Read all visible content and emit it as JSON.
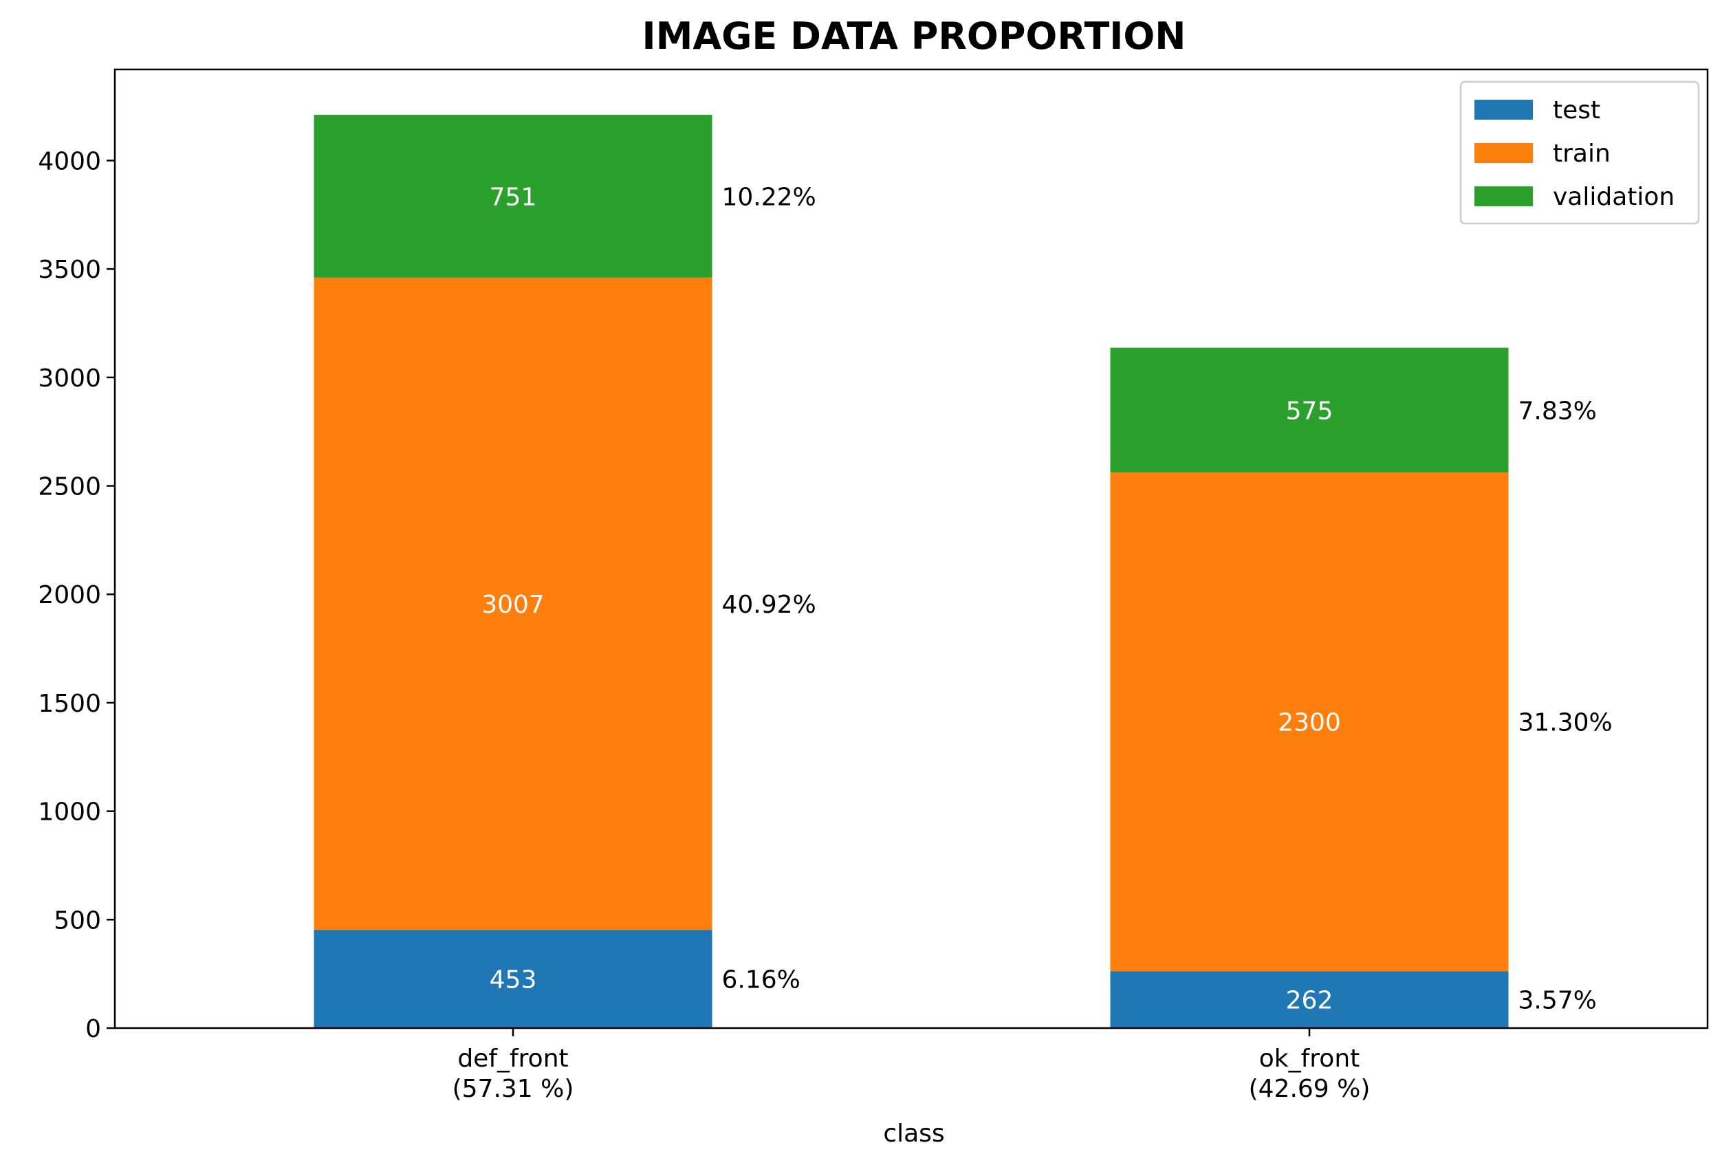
{
  "chart_data": {
    "type": "bar",
    "stacked": true,
    "title": "IMAGE DATA PROPORTION",
    "xlabel": "class",
    "ylabel": "",
    "categories": [
      "def_front",
      "ok_front"
    ],
    "category_subtitles": [
      "(57.31 %)",
      "(42.69 %)"
    ],
    "ylim": [
      0,
      4420
    ],
    "yticks": [
      0,
      500,
      1000,
      1500,
      2000,
      2500,
      3000,
      3500,
      4000
    ],
    "grid": false,
    "legend_position": "top-right",
    "series": [
      {
        "name": "test",
        "color": "#1f77b4",
        "values": [
          453,
          262
        ],
        "percent_labels": [
          "6.16%",
          "3.57%"
        ]
      },
      {
        "name": "train",
        "color": "#ff7f0e",
        "values": [
          3007,
          2300
        ],
        "percent_labels": [
          "40.92%",
          "31.30%"
        ]
      },
      {
        "name": "validation",
        "color": "#2ca02c",
        "values": [
          751,
          575
        ],
        "percent_labels": [
          "10.22%",
          "7.83%"
        ]
      }
    ]
  }
}
